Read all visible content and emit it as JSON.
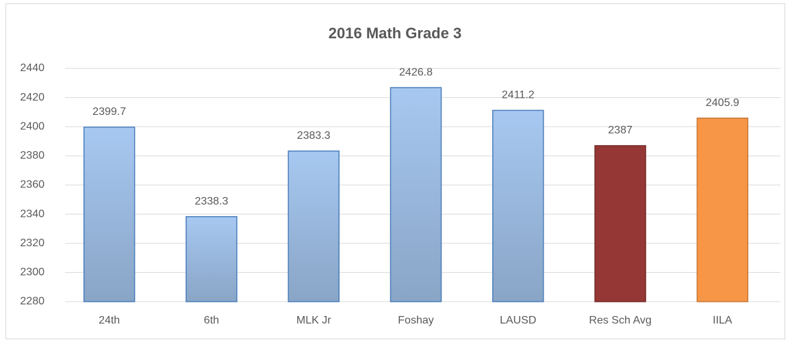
{
  "chart_data": {
    "type": "bar",
    "title": "2016 Math Grade 3",
    "categories": [
      "24th",
      "6th",
      "MLK Jr",
      "Foshay",
      "LAUSD",
      "Res Sch Avg",
      "IILA"
    ],
    "values": [
      2399.7,
      2338.3,
      2383.3,
      2426.8,
      2411.2,
      2387,
      2405.9
    ],
    "colors": [
      "#95b3d7",
      "#95b3d7",
      "#95b3d7",
      "#95b3d7",
      "#95b3d7",
      "#953735",
      "#f79646"
    ],
    "ylim": [
      2280,
      2440
    ],
    "yticks": [
      2280,
      2300,
      2320,
      2340,
      2360,
      2380,
      2400,
      2420,
      2440
    ],
    "grid": true
  }
}
